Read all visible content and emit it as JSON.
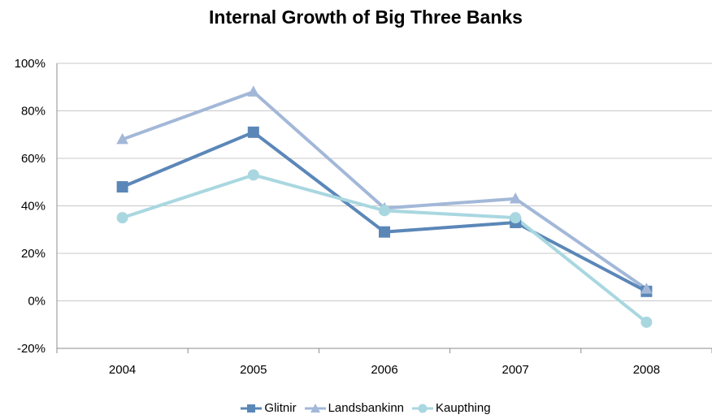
{
  "chart_data": {
    "type": "line",
    "title": "Internal Growth of Big Three Banks",
    "categories": [
      "2004",
      "2005",
      "2006",
      "2007",
      "2008"
    ],
    "ylim": [
      -20,
      100
    ],
    "yticks": [
      -20,
      0,
      20,
      40,
      60,
      80,
      100
    ],
    "ytick_labels": [
      "-20%",
      "0%",
      "20%",
      "40%",
      "60%",
      "80%",
      "100%"
    ],
    "grid": "horizontal",
    "legend_position": "bottom",
    "series": [
      {
        "name": "Glitnir",
        "values": [
          48,
          71,
          29,
          33,
          4
        ],
        "color": "#5b87b8",
        "marker": "square"
      },
      {
        "name": "Landsbankinn",
        "values": [
          68,
          88,
          39,
          43,
          5
        ],
        "color": "#a3b8d8",
        "marker": "triangle"
      },
      {
        "name": "Kaupthing",
        "values": [
          35,
          53,
          38,
          35,
          -9
        ],
        "color": "#a9d7e0",
        "marker": "circle"
      }
    ]
  }
}
